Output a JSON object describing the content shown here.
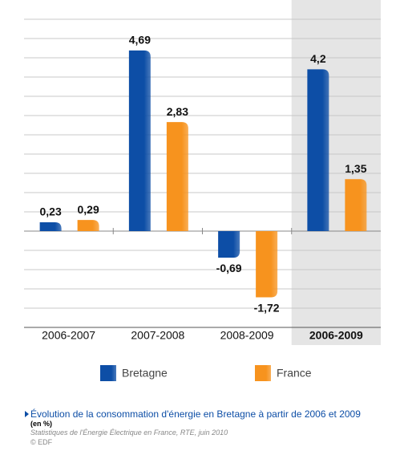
{
  "chart_data": {
    "type": "bar",
    "categories": [
      "2006-2007",
      "2007-2008",
      "2008-2009",
      "2006-2009"
    ],
    "highlighted_category": 3,
    "series": [
      {
        "name": "Bretagne",
        "color": "#0d4ea6",
        "values": [
          0.23,
          4.69,
          -0.69,
          4.2
        ],
        "value_labels": [
          "0,23",
          "4,69",
          "-0,69",
          "4,2"
        ]
      },
      {
        "name": "France",
        "color": "#f7931e",
        "values": [
          0.29,
          2.83,
          -1.72,
          1.35
        ],
        "value_labels": [
          "0,29",
          "2,83",
          "-1,72",
          "1,35"
        ]
      }
    ],
    "ylim": [
      -2.5,
      5.5
    ],
    "yticks": [
      -2.5,
      -2,
      -1.5,
      -1,
      -0.5,
      0,
      0.5,
      1,
      1.5,
      2,
      2.5,
      3,
      3.5,
      4,
      4.5,
      5,
      5.5
    ],
    "grid": true
  },
  "caption": {
    "title": "Évolution de la consommation d'énergie en Bretagne à partir de 2006 et 2009",
    "unit": "(en %)",
    "source": "Statistiques de l'Énergie Électrique en France, RTE, juin 2010",
    "credit": "© EDF"
  }
}
